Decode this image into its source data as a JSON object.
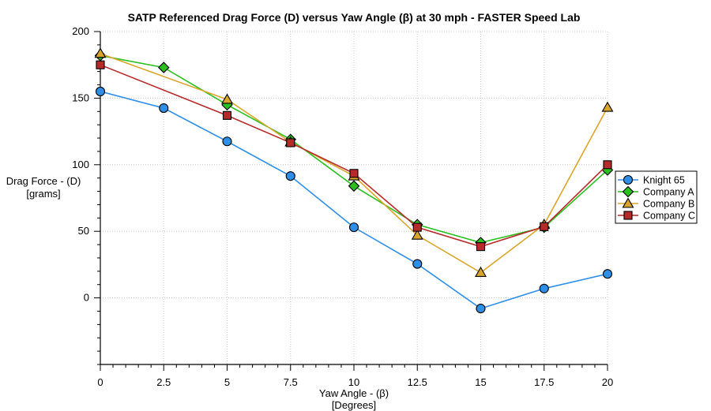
{
  "chart_data": {
    "type": "line",
    "title": "SATP Referenced Drag Force (D) versus Yaw Angle (β) at 30 mph - FASTER Speed Lab",
    "xlabel": "Yaw Angle - (β)",
    "xlabel_units": "[Degrees]",
    "ylabel": "Drag Force -  (D)",
    "ylabel_units": "[grams]",
    "xlim": [
      0,
      20
    ],
    "ylim": [
      -50,
      200
    ],
    "x_ticks": [
      "0",
      "2.5",
      "5",
      "7.5",
      "10",
      "12.5",
      "15",
      "17.5",
      "20"
    ],
    "y_ticks": [
      "200",
      "150",
      "100",
      "50",
      "0"
    ],
    "y_tick_values": [
      200,
      150,
      100,
      50,
      0
    ],
    "grid": "dotted",
    "legend_position": "right",
    "series": [
      {
        "name": "Knight 65",
        "color": "#2f8fe8",
        "marker": "circle",
        "x": [
          0,
          2.5,
          5,
          7.5,
          10,
          12.5,
          15,
          17.5,
          20
        ],
        "values": [
          155,
          142.5,
          117.5,
          91.5,
          53,
          25.5,
          -8,
          7,
          18
        ]
      },
      {
        "name": "Company A",
        "color": "#2bbf1f",
        "marker": "diamond",
        "x": [
          0,
          2.5,
          5,
          7.5,
          10,
          12.5,
          15,
          17.5,
          20
        ],
        "values": [
          182,
          173,
          145,
          119,
          84,
          55,
          41.5,
          53,
          96
        ]
      },
      {
        "name": "Company B",
        "color": "#d9a52b",
        "marker": "triangle",
        "x": [
          0,
          5,
          7.5,
          10,
          12.5,
          15,
          17.5,
          20
        ],
        "values": [
          183.5,
          149,
          117,
          91.5,
          47,
          19,
          55,
          143
        ]
      },
      {
        "name": "Company C",
        "color": "#b62a2a",
        "marker": "square",
        "x": [
          0,
          5,
          7.5,
          10,
          12.5,
          15,
          17.5,
          20
        ],
        "values": [
          175,
          137,
          116.5,
          93.5,
          53,
          38.5,
          53.5,
          100
        ]
      }
    ]
  }
}
